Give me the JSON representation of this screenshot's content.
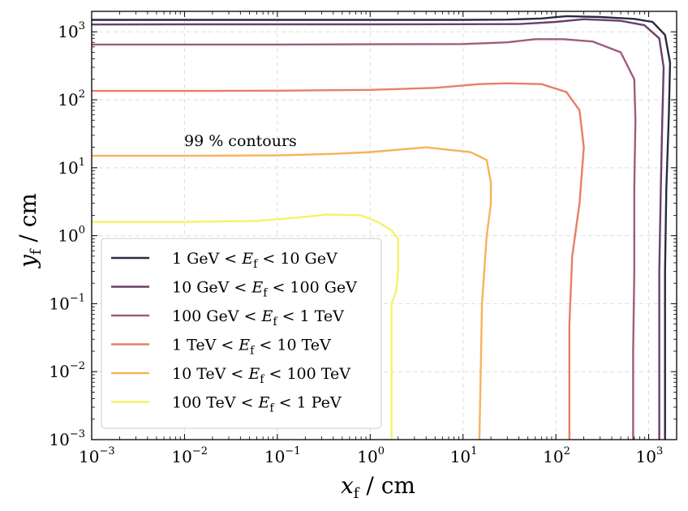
{
  "chart_data": {
    "type": "line",
    "title": "",
    "annotation": "99 % contours",
    "xlabel": {
      "main": "x",
      "sub": "f",
      "unit": " / cm"
    },
    "ylabel": {
      "main": "y",
      "sub": "f",
      "unit": " / cm"
    },
    "xscale": "log",
    "yscale": "log",
    "xlim": [
      0.001,
      2000
    ],
    "ylim": [
      0.001,
      2000
    ],
    "x_ticks": [
      {
        "value": 0.001,
        "base": "10",
        "exp": "−3"
      },
      {
        "value": 0.01,
        "base": "10",
        "exp": "−2"
      },
      {
        "value": 0.1,
        "base": "10",
        "exp": "−1"
      },
      {
        "value": 1,
        "base": "10",
        "exp": "0"
      },
      {
        "value": 10,
        "base": "10",
        "exp": "1"
      },
      {
        "value": 100,
        "base": "10",
        "exp": "2"
      },
      {
        "value": 1000,
        "base": "10",
        "exp": "3"
      }
    ],
    "y_ticks": [
      {
        "value": 0.001,
        "base": "10",
        "exp": "−3"
      },
      {
        "value": 0.01,
        "base": "10",
        "exp": "−2"
      },
      {
        "value": 0.1,
        "base": "10",
        "exp": "−1"
      },
      {
        "value": 1,
        "base": "10",
        "exp": "0"
      },
      {
        "value": 10,
        "base": "10",
        "exp": "1"
      },
      {
        "value": 100,
        "base": "10",
        "exp": "2"
      },
      {
        "value": 1000,
        "base": "10",
        "exp": "3"
      }
    ],
    "grid": true,
    "legend_position": "lower-left",
    "series": [
      {
        "name": "1 GeV < Ef < 10 GeV",
        "label": {
          "pre": "1 GeV < ",
          "var": "E",
          "sub": "f",
          "post": " < 10 GeV"
        },
        "color": "#2b2a40",
        "points": [
          [
            0.001,
            1500
          ],
          [
            0.01,
            1500
          ],
          [
            0.1,
            1500
          ],
          [
            1,
            1500
          ],
          [
            10,
            1500
          ],
          [
            30,
            1510
          ],
          [
            70,
            1570
          ],
          [
            130,
            1700
          ],
          [
            300,
            1650
          ],
          [
            700,
            1550
          ],
          [
            1100,
            1400
          ],
          [
            1500,
            900
          ],
          [
            1700,
            350
          ],
          [
            1650,
            60
          ],
          [
            1550,
            5
          ],
          [
            1500,
            0.3
          ],
          [
            1500,
            0.02
          ],
          [
            1500,
            0.001
          ]
        ]
      },
      {
        "name": "10 GeV < Ef < 100 GeV",
        "label": {
          "pre": "10 GeV < ",
          "var": "E",
          "sub": "f",
          "post": " < 100 GeV"
        },
        "color": "#6c3e6d",
        "points": [
          [
            0.001,
            1280
          ],
          [
            0.01,
            1290
          ],
          [
            0.1,
            1290
          ],
          [
            1,
            1290
          ],
          [
            10,
            1295
          ],
          [
            40,
            1300
          ],
          [
            100,
            1400
          ],
          [
            200,
            1530
          ],
          [
            500,
            1450
          ],
          [
            900,
            1250
          ],
          [
            1300,
            800
          ],
          [
            1450,
            300
          ],
          [
            1400,
            50
          ],
          [
            1350,
            5
          ],
          [
            1300,
            0.3
          ],
          [
            1300,
            0.02
          ],
          [
            1300,
            0.001
          ]
        ]
      },
      {
        "name": "100 GeV < Ef < 1 TeV",
        "label": {
          "pre": "100 GeV < ",
          "var": "E",
          "sub": "f",
          "post": " < 1 TeV"
        },
        "color": "#a25a80",
        "points": [
          [
            0.001,
            650
          ],
          [
            0.01,
            650
          ],
          [
            0.1,
            650
          ],
          [
            1,
            655
          ],
          [
            10,
            660
          ],
          [
            30,
            700
          ],
          [
            60,
            780
          ],
          [
            120,
            780
          ],
          [
            250,
            720
          ],
          [
            500,
            500
          ],
          [
            700,
            200
          ],
          [
            720,
            50
          ],
          [
            700,
            5
          ],
          [
            700,
            0.3
          ],
          [
            680,
            0.02
          ],
          [
            680,
            0.001
          ]
        ]
      },
      {
        "name": "1 TeV < Ef < 10 TeV",
        "label": {
          "pre": "1 TeV < ",
          "var": "E",
          "sub": "f",
          "post": " < 10 TeV"
        },
        "color": "#e58066",
        "points": [
          [
            0.001,
            135
          ],
          [
            0.01,
            135
          ],
          [
            0.1,
            136
          ],
          [
            1,
            140
          ],
          [
            5,
            150
          ],
          [
            15,
            170
          ],
          [
            30,
            175
          ],
          [
            70,
            170
          ],
          [
            130,
            130
          ],
          [
            180,
            70
          ],
          [
            200,
            20
          ],
          [
            180,
            3
          ],
          [
            150,
            0.5
          ],
          [
            140,
            0.05
          ],
          [
            140,
            0.001
          ]
        ]
      },
      {
        "name": "10 TeV < Ef < 100 TeV",
        "label": {
          "pre": "10 TeV < ",
          "var": "E",
          "sub": "f",
          "post": " < 100 TeV"
        },
        "color": "#f9b25b",
        "points": [
          [
            0.001,
            15
          ],
          [
            0.01,
            15
          ],
          [
            0.1,
            15.2
          ],
          [
            0.4,
            16
          ],
          [
            1,
            17
          ],
          [
            4,
            20
          ],
          [
            8,
            18
          ],
          [
            12,
            17
          ],
          [
            18,
            13
          ],
          [
            20,
            6
          ],
          [
            20,
            3
          ],
          [
            18,
            1
          ],
          [
            16,
            0.1
          ],
          [
            15,
            0.001
          ]
        ]
      },
      {
        "name": "100 TeV < Ef < 1 PeV",
        "label": {
          "pre": "100 TeV < ",
          "var": "E",
          "sub": "f",
          "post": " < 1 PeV"
        },
        "color": "#f7f266",
        "points": [
          [
            0.001,
            1.6
          ],
          [
            0.01,
            1.6
          ],
          [
            0.06,
            1.65
          ],
          [
            0.2,
            1.9
          ],
          [
            0.35,
            2.05
          ],
          [
            0.8,
            2
          ],
          [
            1.2,
            1.6
          ],
          [
            1.7,
            1.2
          ],
          [
            2,
            0.9
          ],
          [
            2,
            0.3
          ],
          [
            1.9,
            0.15
          ],
          [
            1.7,
            0.1
          ],
          [
            1.7,
            0.001
          ]
        ]
      }
    ]
  }
}
